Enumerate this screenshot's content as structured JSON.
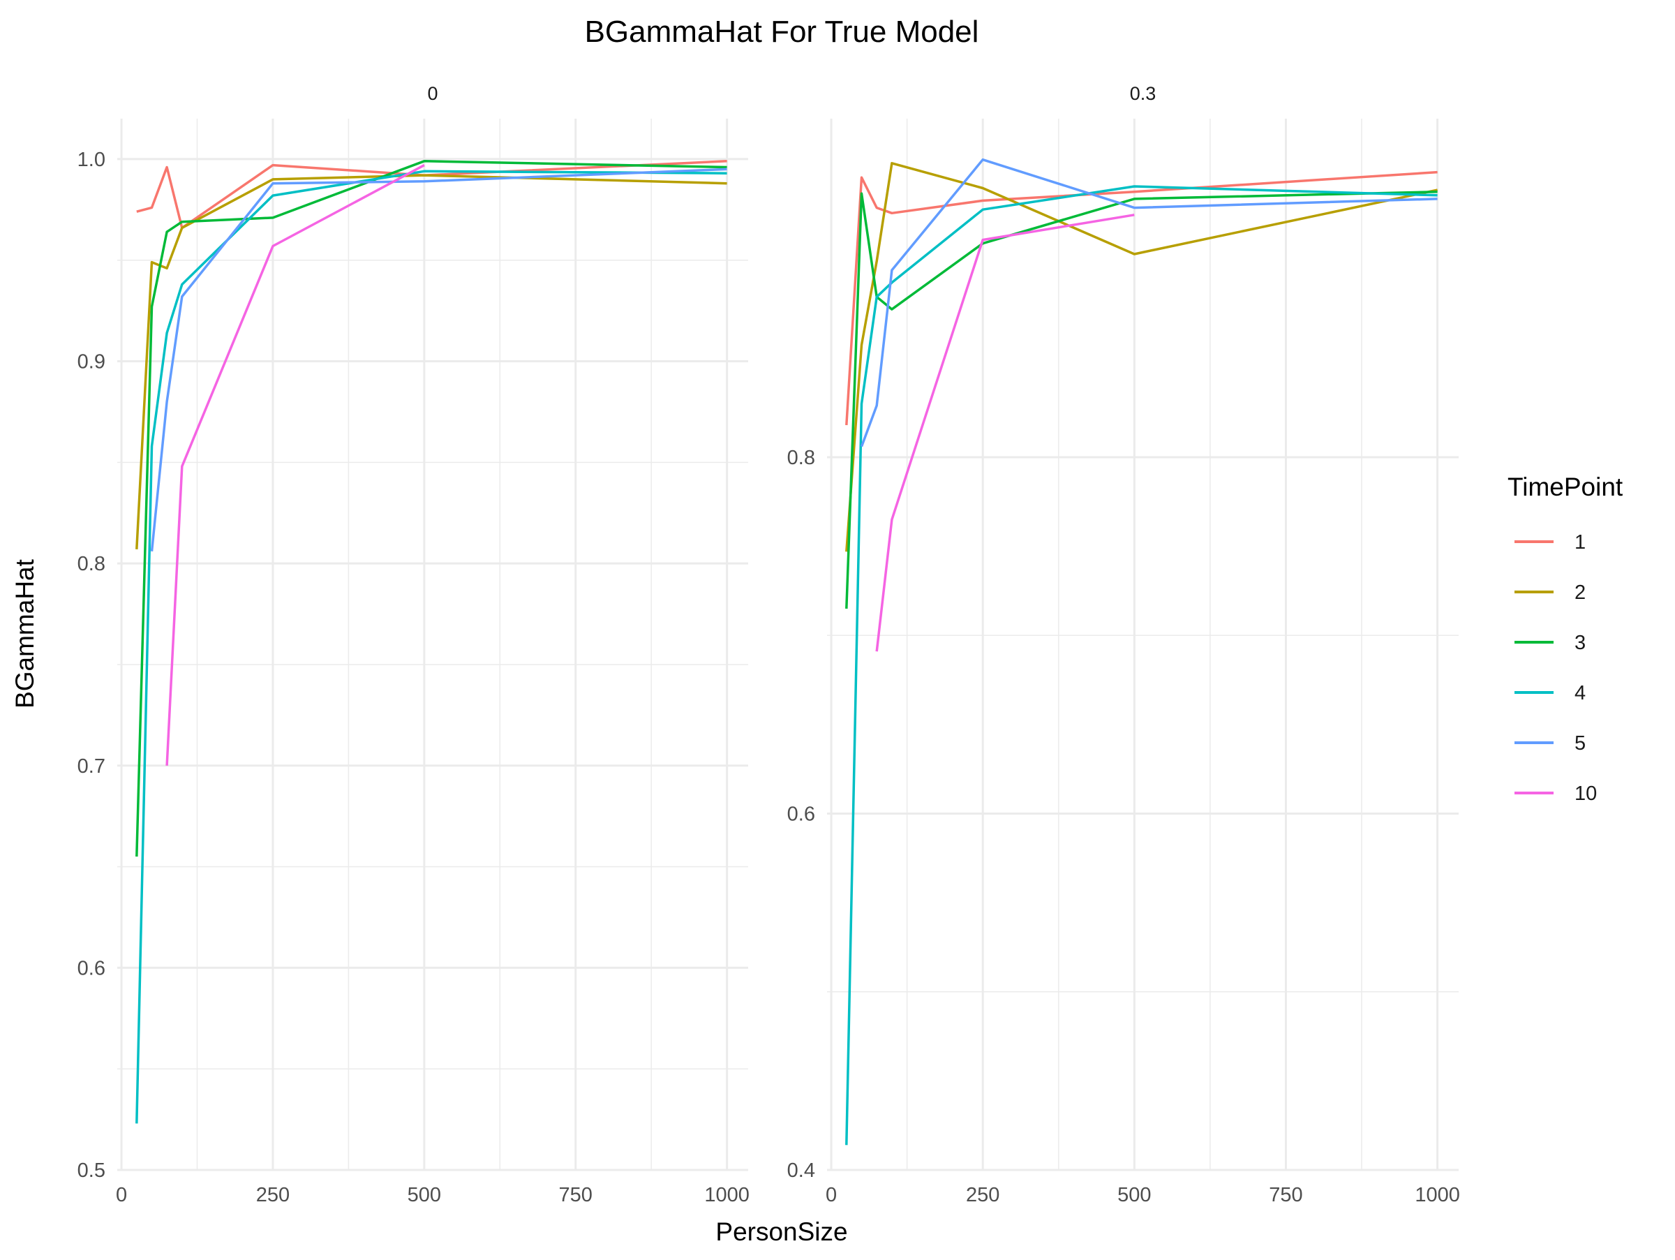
{
  "chart_data": {
    "type": "line",
    "title": "BGammaHat For True Model",
    "xlabel": "PersonSize",
    "ylabel": "BGammaHat",
    "grid": true,
    "legend": {
      "title": "TimePoint",
      "position": "right",
      "entries": [
        {
          "label": "1",
          "color": "#F8766D"
        },
        {
          "label": "2",
          "color": "#B79F00"
        },
        {
          "label": "3",
          "color": "#00BA38"
        },
        {
          "label": "4",
          "color": "#00BFC4"
        },
        {
          "label": "5",
          "color": "#619CFF"
        },
        {
          "label": "10",
          "color": "#F564E3"
        }
      ]
    },
    "facets": [
      {
        "strip_label": "0",
        "xlim": [
          -7,
          1035
        ],
        "ylim": [
          0.5,
          1.02
        ],
        "x_ticks": [
          0,
          250,
          500,
          750,
          1000
        ],
        "y_ticks": [
          0.5,
          0.6,
          0.7,
          0.8,
          0.9,
          1.0
        ],
        "y_tick_labels": [
          "0.5",
          "0.6",
          "0.7",
          "0.8",
          "0.9",
          "1.0"
        ],
        "series": [
          {
            "name": "1",
            "color": "#F8766D",
            "x": [
              25,
              50,
              75,
              100,
              250,
              500,
              1000
            ],
            "y": [
              0.974,
              0.976,
              0.996,
              0.966,
              0.997,
              0.992,
              0.999
            ]
          },
          {
            "name": "2",
            "color": "#B79F00",
            "x": [
              25,
              50,
              75,
              100,
              250,
              500,
              1000
            ],
            "y": [
              0.807,
              0.949,
              0.946,
              0.966,
              0.99,
              0.992,
              0.988
            ]
          },
          {
            "name": "3",
            "color": "#00BA38",
            "x": [
              25,
              50,
              75,
              100,
              250,
              500,
              1000
            ],
            "y": [
              0.655,
              0.927,
              0.964,
              0.969,
              0.971,
              0.999,
              0.996
            ]
          },
          {
            "name": "4",
            "color": "#00BFC4",
            "x": [
              25,
              50,
              75,
              100,
              250,
              500,
              1000
            ],
            "y": [
              0.523,
              0.858,
              0.914,
              0.938,
              0.982,
              0.994,
              0.993
            ]
          },
          {
            "name": "5",
            "color": "#619CFF",
            "x": [
              50,
              75,
              100,
              250,
              500,
              1000
            ],
            "y": [
              0.806,
              0.88,
              0.932,
              0.988,
              0.989,
              0.995
            ]
          },
          {
            "name": "10",
            "color": "#F564E3",
            "x": [
              75,
              100,
              250,
              500
            ],
            "y": [
              0.7,
              0.848,
              0.957,
              0.997
            ]
          }
        ]
      },
      {
        "strip_label": "0.3",
        "xlim": [
          -7,
          1035
        ],
        "ylim": [
          0.4,
          0.99
        ],
        "x_ticks": [
          0,
          250,
          500,
          750,
          1000
        ],
        "y_ticks": [
          0.4,
          0.6,
          0.8
        ],
        "y_tick_labels": [
          "0.4",
          "0.6",
          "0.8"
        ],
        "series": [
          {
            "name": "1",
            "color": "#F8766D",
            "x": [
              25,
              50,
              75,
              100,
              250,
              500,
              1000
            ],
            "y": [
              0.818,
              0.957,
              0.94,
              0.937,
              0.944,
              0.949,
              0.96
            ]
          },
          {
            "name": "2",
            "color": "#B79F00",
            "x": [
              25,
              50,
              75,
              100,
              250,
              500,
              1000
            ],
            "y": [
              0.747,
              0.863,
              0.91,
              0.965,
              0.951,
              0.914,
              0.95
            ]
          },
          {
            "name": "3",
            "color": "#00BA38",
            "x": [
              25,
              50,
              75,
              100,
              250,
              500,
              1000
            ],
            "y": [
              0.715,
              0.948,
              0.89,
              0.883,
              0.92,
              0.945,
              0.949
            ]
          },
          {
            "name": "4",
            "color": "#00BFC4",
            "x": [
              25,
              50,
              75,
              100,
              250,
              500,
              1000
            ],
            "y": [
              0.414,
              0.83,
              0.89,
              0.898,
              0.939,
              0.952,
              0.947
            ]
          },
          {
            "name": "5",
            "color": "#619CFF",
            "x": [
              50,
              75,
              100,
              250,
              500,
              1000
            ],
            "y": [
              0.806,
              0.829,
              0.905,
              0.967,
              0.94,
              0.945
            ]
          },
          {
            "name": "10",
            "color": "#F564E3",
            "x": [
              75,
              100,
              250,
              500
            ],
            "y": [
              0.691,
              0.765,
              0.922,
              0.936
            ]
          }
        ]
      }
    ]
  }
}
